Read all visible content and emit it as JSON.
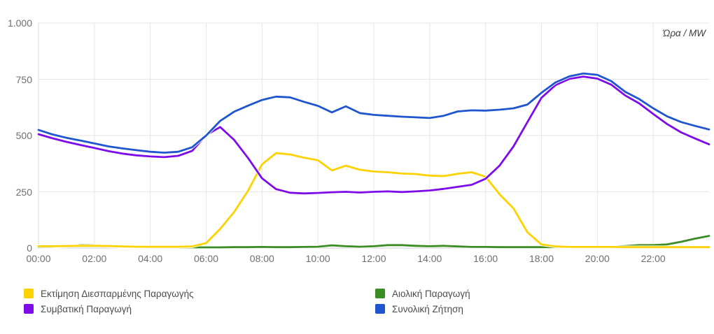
{
  "chart_data": {
    "type": "line",
    "units_label": "Ώρα / MW",
    "grid": true,
    "legend_position": "bottom-left-two-columns",
    "x_axis": {
      "min_hour": 0,
      "max_hour": 24,
      "ticks": [
        {
          "hour": 0,
          "label": "00:00"
        },
        {
          "hour": 2,
          "label": "02:00"
        },
        {
          "hour": 4,
          "label": "04:00"
        },
        {
          "hour": 6,
          "label": "06:00"
        },
        {
          "hour": 8,
          "label": "08:00"
        },
        {
          "hour": 10,
          "label": "10:00"
        },
        {
          "hour": 12,
          "label": "12:00"
        },
        {
          "hour": 14,
          "label": "14:00"
        },
        {
          "hour": 16,
          "label": "16:00"
        },
        {
          "hour": 18,
          "label": "18:00"
        },
        {
          "hour": 20,
          "label": "20:00"
        },
        {
          "hour": 22,
          "label": "22:00"
        }
      ]
    },
    "y_axis": {
      "min": 0,
      "max": 1000,
      "ticks": [
        {
          "value": 0,
          "label": "0"
        },
        {
          "value": 250,
          "label": "250"
        },
        {
          "value": 500,
          "label": "500"
        },
        {
          "value": 750,
          "label": "750"
        },
        {
          "value": 1000,
          "label": "1.000"
        }
      ]
    },
    "x_hours": [
      0,
      0.5,
      1,
      1.5,
      2,
      2.5,
      3,
      3.5,
      4,
      4.5,
      5,
      5.5,
      6,
      6.5,
      7,
      7.5,
      8,
      8.5,
      9,
      9.5,
      10,
      10.5,
      11,
      11.5,
      12,
      12.5,
      13,
      13.5,
      14,
      14.5,
      15,
      15.5,
      16,
      16.5,
      17,
      17.5,
      18,
      18.5,
      19,
      19.5,
      20,
      20.5,
      21,
      21.5,
      22,
      22.5,
      23,
      23.5,
      24
    ],
    "z_order": [
      1,
      0,
      2,
      3
    ],
    "series": [
      {
        "name": "Εκτίμηση Διεσπαρμένης Παραγωγής",
        "slug": "distributed-generation-estimate",
        "color": "#FCD202",
        "values": [
          8,
          8,
          9,
          10,
          10,
          9,
          7,
          6,
          6,
          6,
          6,
          7,
          22,
          85,
          160,
          255,
          372,
          422,
          416,
          402,
          390,
          345,
          366,
          348,
          340,
          337,
          331,
          329,
          322,
          320,
          330,
          337,
          317,
          239,
          176,
          70,
          16,
          7,
          5,
          5,
          5,
          5,
          4,
          4,
          4,
          4,
          4,
          4,
          4
        ]
      },
      {
        "name": "Αιολική Παραγωγή",
        "slug": "wind-generation",
        "color": "#3B8C22",
        "values": [
          4,
          5,
          8,
          14,
          13,
          8,
          5,
          4,
          3,
          3,
          3,
          3,
          3,
          3,
          4,
          4,
          5,
          4,
          4,
          5,
          6,
          12,
          8,
          6,
          8,
          13,
          13,
          10,
          8,
          10,
          7,
          5,
          5,
          4,
          4,
          4,
          4,
          4,
          4,
          5,
          5,
          6,
          9,
          13,
          13,
          16,
          28,
          42,
          54
        ]
      },
      {
        "name": "Συμβατική Παραγωγή",
        "slug": "conventional-generation",
        "color": "#7D0CE8",
        "values": [
          506,
          488,
          472,
          458,
          445,
          431,
          420,
          412,
          407,
          404,
          410,
          432,
          502,
          538,
          481,
          400,
          310,
          262,
          246,
          243,
          245,
          248,
          250,
          247,
          250,
          252,
          249,
          252,
          256,
          263,
          272,
          281,
          308,
          366,
          452,
          560,
          668,
          724,
          752,
          762,
          753,
          726,
          678,
          643,
          596,
          551,
          514,
          487,
          461
        ]
      },
      {
        "name": "Συνολική Ζήτηση",
        "slug": "total-demand",
        "color": "#1F55CE",
        "values": [
          525,
          505,
          490,
          478,
          465,
          452,
          443,
          435,
          428,
          424,
          428,
          448,
          500,
          565,
          606,
          633,
          658,
          673,
          670,
          650,
          632,
          603,
          630,
          600,
          592,
          588,
          584,
          581,
          578,
          588,
          607,
          612,
          611,
          615,
          621,
          638,
          690,
          736,
          763,
          776,
          770,
          742,
          694,
          662,
          621,
          585,
          560,
          543,
          527
        ]
      }
    ]
  }
}
